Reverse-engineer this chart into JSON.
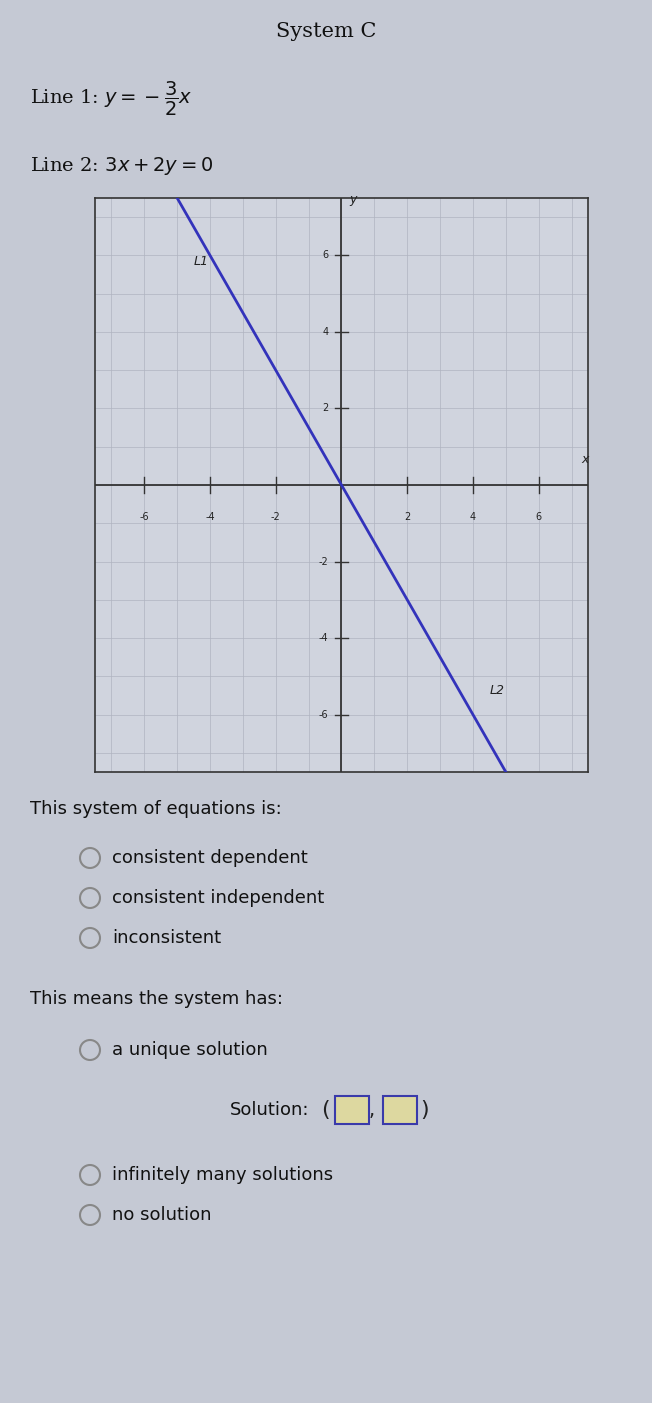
{
  "title": "System C",
  "line1_text": "Line 1: $y=-\\dfrac{3}{2}x$",
  "line2_text": "Line 2: $3x+2y=0$",
  "line_color": "#3333bb",
  "graph_bg": "#d0d4de",
  "grid_color": "#b0b4c0",
  "axis_color": "#333333",
  "tick_vals": [
    -6,
    -4,
    -2,
    2,
    4,
    6
  ],
  "L1_label": "L1",
  "L2_label": "L2",
  "system_label": "This system of equations is:",
  "options1": [
    "consistent dependent",
    "consistent independent",
    "inconsistent"
  ],
  "means_label": "This means the system has:",
  "option_unique": "a unique solution",
  "solution_label": "Solution:",
  "options_post": [
    "infinitely many solutions",
    "no solution"
  ],
  "background_color": "#c5c9d4",
  "text_color": "#111111",
  "radio_edge": "#888888",
  "box_border": "#3a3aaa",
  "box_fill": "#ddd8a0"
}
